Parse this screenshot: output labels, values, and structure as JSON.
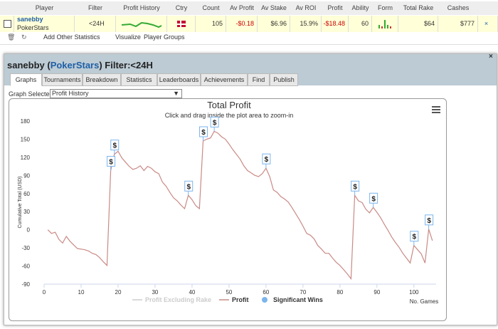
{
  "table": {
    "headers": [
      "Player",
      "Filter",
      "Profit History",
      "Ctry",
      "Count",
      "Av Profit",
      "Av Stake",
      "Av ROI",
      "Profit",
      "Ability",
      "Form",
      "Total Rake",
      "Cashes"
    ],
    "rows": [
      {
        "player": "sanebby",
        "site": "PokerStars",
        "filter": "<24H",
        "count": 105,
        "av_profit": "-$0.18",
        "av_stake": "$6.96",
        "av_roi": "15.9%",
        "profit": "-$18.48",
        "ability": 60,
        "total_rake": "$64",
        "cashes": "$777"
      }
    ]
  },
  "toolbar": [
    "Add Other Statistics",
    "Visualize",
    "Player Groups"
  ],
  "panel": {
    "title_parts": [
      "sanebby (",
      "PokerStars",
      ") Filter:<24H"
    ],
    "tabs": [
      "Graphs",
      "Tournaments",
      "Breakdown",
      "Statistics",
      "Leaderboards",
      "Achievements",
      "Find",
      "Publish"
    ],
    "graph_selected_label": "Graph Selected:",
    "graph_selected": "Profit History"
  },
  "chart_data": {
    "type": "line",
    "title": "Total Profit",
    "subtitle": "Click and drag inside the plot area to zoom-in",
    "y_label": "Cumulative Total (USD)",
    "x_label": "No. Games",
    "xlim": [
      0,
      106
    ],
    "xticks": [
      0,
      10,
      20,
      30,
      40,
      50,
      60,
      70,
      80,
      90,
      100
    ],
    "ylim": [
      -90,
      180
    ],
    "yticks": [
      -90,
      -60,
      -30,
      0,
      30,
      60,
      90,
      120,
      150,
      180
    ],
    "grid": false,
    "series": [
      {
        "name": "Profit Excluding Rake",
        "color": "#cccccc",
        "visible": false
      },
      {
        "name": "Profit",
        "color": "#c98a86",
        "x": [
          1,
          2,
          3,
          4,
          5,
          6,
          7,
          8,
          9,
          10,
          11,
          12,
          13,
          14,
          15,
          16,
          17,
          18,
          19,
          20,
          21,
          22,
          23,
          24,
          25,
          26,
          27,
          28,
          29,
          30,
          31,
          32,
          33,
          34,
          35,
          36,
          37,
          38,
          39,
          40,
          41,
          42,
          43,
          44,
          45,
          46,
          47,
          48,
          49,
          50,
          51,
          52,
          53,
          54,
          55,
          56,
          57,
          58,
          59,
          60,
          61,
          62,
          63,
          64,
          65,
          66,
          67,
          68,
          69,
          70,
          71,
          72,
          73,
          74,
          75,
          76,
          77,
          78,
          79,
          80,
          81,
          82,
          83,
          84,
          85,
          86,
          87,
          88,
          89,
          90,
          91,
          92,
          93,
          94,
          95,
          96,
          97,
          98,
          99,
          100,
          101,
          102,
          103,
          104,
          105
        ],
        "values": [
          0,
          -6,
          -4,
          -16,
          -22,
          -11,
          -19,
          -25,
          -31,
          -32,
          -33,
          -35,
          -39,
          -41,
          -46,
          -53,
          -59,
          98,
          125,
          130,
          119,
          112,
          105,
          100,
          102,
          106,
          98,
          105,
          102,
          96,
          93,
          79,
          72,
          62,
          53,
          48,
          41,
          35,
          57,
          50,
          40,
          35,
          147,
          150,
          152,
          163,
          160,
          154,
          150,
          142,
          133,
          125,
          117,
          106,
          98,
          94,
          90,
          88,
          93,
          102,
          88,
          66,
          62,
          55,
          51,
          46,
          37,
          27,
          17,
          6,
          -6,
          -9,
          -15,
          -26,
          -32,
          -39,
          -39,
          -47,
          -54,
          -59,
          -66,
          -73,
          -81,
          57,
          48,
          45,
          34,
          28,
          37,
          29,
          20,
          9,
          -1,
          -12,
          -21,
          -29,
          -39,
          -47,
          -55,
          -26,
          -33,
          -40,
          -55,
          1,
          -18
        ]
      },
      {
        "name": "Significant Wins",
        "color": "#7cb5ec",
        "marker_label": "$",
        "x": [
          18,
          19,
          39,
          43,
          46,
          60,
          84,
          89,
          100,
          104
        ],
        "values": [
          98,
          125,
          57,
          147,
          163,
          102,
          57,
          37,
          -26,
          1
        ]
      }
    ]
  }
}
